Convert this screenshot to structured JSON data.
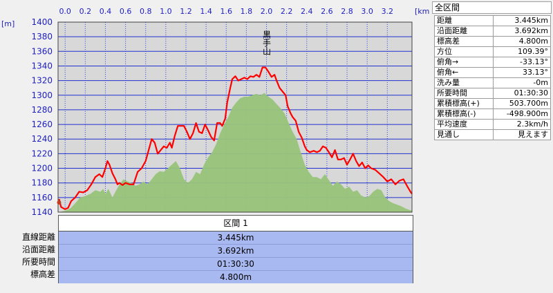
{
  "chart_data": {
    "type": "area",
    "x_unit": "[km]",
    "y_unit": "[m]",
    "xlim": [
      -0.07,
      3.445
    ],
    "ylim": [
      1140,
      1400
    ],
    "x_ticks": [
      "0.0",
      "0.2",
      "0.4",
      "0.6",
      "0.8",
      "1.0",
      "1.2",
      "1.4",
      "1.6",
      "1.8",
      "2.0",
      "2.2",
      "2.4",
      "2.6",
      "2.8",
      "3.0",
      "3.2"
    ],
    "y_ticks": [
      "1400",
      "1380",
      "1360",
      "1340",
      "1320",
      "1300",
      "1280",
      "1260",
      "1240",
      "1220",
      "1200",
      "1180",
      "1160",
      "1140"
    ],
    "annotation": "黒手山",
    "annotation_x": 2.0,
    "series": [
      {
        "color": "#ff0000",
        "points": [
          [
            -0.06,
            1158
          ],
          [
            -0.04,
            1147
          ],
          [
            0.0,
            1144
          ],
          [
            0.03,
            1146
          ],
          [
            0.06,
            1155
          ],
          [
            0.1,
            1160
          ],
          [
            0.14,
            1168
          ],
          [
            0.18,
            1167
          ],
          [
            0.22,
            1170
          ],
          [
            0.26,
            1178
          ],
          [
            0.3,
            1188
          ],
          [
            0.34,
            1192
          ],
          [
            0.37,
            1188
          ],
          [
            0.4,
            1200
          ],
          [
            0.42,
            1210
          ],
          [
            0.44,
            1205
          ],
          [
            0.47,
            1193
          ],
          [
            0.5,
            1185
          ],
          [
            0.52,
            1178
          ],
          [
            0.54,
            1180
          ],
          [
            0.57,
            1177
          ],
          [
            0.6,
            1180
          ],
          [
            0.64,
            1178
          ],
          [
            0.68,
            1178
          ],
          [
            0.72,
            1195
          ],
          [
            0.76,
            1200
          ],
          [
            0.8,
            1210
          ],
          [
            0.83,
            1225
          ],
          [
            0.86,
            1240
          ],
          [
            0.89,
            1235
          ],
          [
            0.92,
            1220
          ],
          [
            0.95,
            1225
          ],
          [
            0.98,
            1230
          ],
          [
            1.01,
            1228
          ],
          [
            1.04,
            1235
          ],
          [
            1.06,
            1228
          ],
          [
            1.09,
            1245
          ],
          [
            1.12,
            1258
          ],
          [
            1.15,
            1258
          ],
          [
            1.18,
            1258
          ],
          [
            1.21,
            1250
          ],
          [
            1.24,
            1240
          ],
          [
            1.27,
            1248
          ],
          [
            1.3,
            1262
          ],
          [
            1.33,
            1250
          ],
          [
            1.36,
            1248
          ],
          [
            1.39,
            1260
          ],
          [
            1.42,
            1252
          ],
          [
            1.45,
            1243
          ],
          [
            1.48,
            1238
          ],
          [
            1.51,
            1262
          ],
          [
            1.54,
            1262
          ],
          [
            1.56,
            1258
          ],
          [
            1.59,
            1268
          ],
          [
            1.61,
            1290
          ],
          [
            1.64,
            1310
          ],
          [
            1.66,
            1322
          ],
          [
            1.69,
            1326
          ],
          [
            1.72,
            1320
          ],
          [
            1.75,
            1322
          ],
          [
            1.78,
            1324
          ],
          [
            1.81,
            1322
          ],
          [
            1.84,
            1326
          ],
          [
            1.87,
            1325
          ],
          [
            1.9,
            1328
          ],
          [
            1.93,
            1325
          ],
          [
            1.96,
            1338
          ],
          [
            1.99,
            1338
          ],
          [
            2.02,
            1332
          ],
          [
            2.05,
            1325
          ],
          [
            2.08,
            1328
          ],
          [
            2.1,
            1320
          ],
          [
            2.13,
            1310
          ],
          [
            2.16,
            1305
          ],
          [
            2.19,
            1300
          ],
          [
            2.21,
            1285
          ],
          [
            2.24,
            1275
          ],
          [
            2.26,
            1270
          ],
          [
            2.29,
            1265
          ],
          [
            2.32,
            1250
          ],
          [
            2.35,
            1242
          ],
          [
            2.38,
            1230
          ],
          [
            2.4,
            1225
          ],
          [
            2.43,
            1222
          ],
          [
            2.47,
            1224
          ],
          [
            2.5,
            1222
          ],
          [
            2.53,
            1224
          ],
          [
            2.56,
            1230
          ],
          [
            2.59,
            1228
          ],
          [
            2.62,
            1222
          ],
          [
            2.65,
            1215
          ],
          [
            2.68,
            1225
          ],
          [
            2.71,
            1212
          ],
          [
            2.74,
            1212
          ],
          [
            2.77,
            1214
          ],
          [
            2.8,
            1205
          ],
          [
            2.83,
            1212
          ],
          [
            2.86,
            1220
          ],
          [
            2.89,
            1210
          ],
          [
            2.92,
            1203
          ],
          [
            2.95,
            1208
          ],
          [
            2.98,
            1200
          ],
          [
            3.01,
            1204
          ],
          [
            3.04,
            1200
          ],
          [
            3.08,
            1198
          ],
          [
            3.12,
            1193
          ],
          [
            3.16,
            1188
          ],
          [
            3.2,
            1182
          ],
          [
            3.24,
            1185
          ],
          [
            3.28,
            1178
          ],
          [
            3.32,
            1183
          ],
          [
            3.36,
            1185
          ],
          [
            3.4,
            1175
          ],
          [
            3.43,
            1168
          ],
          [
            3.445,
            1165
          ]
        ]
      },
      {
        "color": "#98c47a",
        "points": [
          [
            -0.06,
            1140
          ],
          [
            0.0,
            1142
          ],
          [
            0.05,
            1145
          ],
          [
            0.1,
            1152
          ],
          [
            0.15,
            1160
          ],
          [
            0.2,
            1162
          ],
          [
            0.25,
            1165
          ],
          [
            0.3,
            1170
          ],
          [
            0.35,
            1168
          ],
          [
            0.38,
            1172
          ],
          [
            0.4,
            1165
          ],
          [
            0.43,
            1172
          ],
          [
            0.47,
            1160
          ],
          [
            0.5,
            1168
          ],
          [
            0.54,
            1178
          ],
          [
            0.58,
            1185
          ],
          [
            0.62,
            1182
          ],
          [
            0.66,
            1180
          ],
          [
            0.7,
            1176
          ],
          [
            0.74,
            1178
          ],
          [
            0.78,
            1182
          ],
          [
            0.82,
            1178
          ],
          [
            0.86,
            1185
          ],
          [
            0.9,
            1192
          ],
          [
            0.94,
            1196
          ],
          [
            0.98,
            1195
          ],
          [
            1.02,
            1200
          ],
          [
            1.06,
            1205
          ],
          [
            1.1,
            1210
          ],
          [
            1.14,
            1200
          ],
          [
            1.18,
            1185
          ],
          [
            1.22,
            1180
          ],
          [
            1.26,
            1185
          ],
          [
            1.3,
            1195
          ],
          [
            1.34,
            1192
          ],
          [
            1.38,
            1205
          ],
          [
            1.42,
            1215
          ],
          [
            1.46,
            1222
          ],
          [
            1.5,
            1233
          ],
          [
            1.54,
            1248
          ],
          [
            1.58,
            1260
          ],
          [
            1.62,
            1270
          ],
          [
            1.66,
            1283
          ],
          [
            1.7,
            1290
          ],
          [
            1.74,
            1296
          ],
          [
            1.78,
            1298
          ],
          [
            1.82,
            1298
          ],
          [
            1.86,
            1300
          ],
          [
            1.9,
            1302
          ],
          [
            1.94,
            1300
          ],
          [
            1.98,
            1303
          ],
          [
            2.02,
            1298
          ],
          [
            2.06,
            1294
          ],
          [
            2.1,
            1288
          ],
          [
            2.14,
            1282
          ],
          [
            2.18,
            1275
          ],
          [
            2.22,
            1262
          ],
          [
            2.26,
            1250
          ],
          [
            2.3,
            1240
          ],
          [
            2.34,
            1222
          ],
          [
            2.38,
            1205
          ],
          [
            2.42,
            1195
          ],
          [
            2.46,
            1188
          ],
          [
            2.5,
            1188
          ],
          [
            2.54,
            1185
          ],
          [
            2.58,
            1192
          ],
          [
            2.62,
            1184
          ],
          [
            2.66,
            1176
          ],
          [
            2.7,
            1182
          ],
          [
            2.74,
            1178
          ],
          [
            2.78,
            1172
          ],
          [
            2.82,
            1175
          ],
          [
            2.86,
            1168
          ],
          [
            2.9,
            1170
          ],
          [
            2.94,
            1163
          ],
          [
            2.98,
            1160
          ],
          [
            3.02,
            1162
          ],
          [
            3.06,
            1168
          ],
          [
            3.1,
            1172
          ],
          [
            3.14,
            1170
          ],
          [
            3.18,
            1160
          ],
          [
            3.22,
            1155
          ],
          [
            3.26,
            1152
          ],
          [
            3.3,
            1150
          ],
          [
            3.34,
            1148
          ],
          [
            3.38,
            1145
          ],
          [
            3.42,
            1143
          ],
          [
            3.445,
            1142
          ]
        ]
      }
    ]
  },
  "stats": {
    "title": "全区間",
    "rows": [
      {
        "label": "距離",
        "value": "3.445km"
      },
      {
        "label": "沿面距離",
        "value": "3.692km"
      },
      {
        "label": "標高差",
        "value": "4.800m"
      },
      {
        "label": "方位",
        "value": "109.39°"
      },
      {
        "label": "俯角→",
        "value": "-33.13°"
      },
      {
        "label": "俯角←",
        "value": "33.13°"
      },
      {
        "label": "洗み量",
        "value": "-0m"
      },
      {
        "label": "所要時間",
        "value": "01:30:30"
      },
      {
        "label": "累積標高(+)",
        "value": "503.700m"
      },
      {
        "label": "累積標高(-)",
        "value": "-498.900m"
      },
      {
        "label": "平均速度",
        "value": "2.3km/h"
      },
      {
        "label": "見通し",
        "value": "見えます"
      }
    ]
  },
  "segment": {
    "header": "区間 1",
    "labels": [
      "直線距離",
      "沿面距離",
      "所要時間",
      "標高差"
    ],
    "values": [
      "3.445km",
      "3.692km",
      "01:30:30",
      "4.800m"
    ]
  }
}
